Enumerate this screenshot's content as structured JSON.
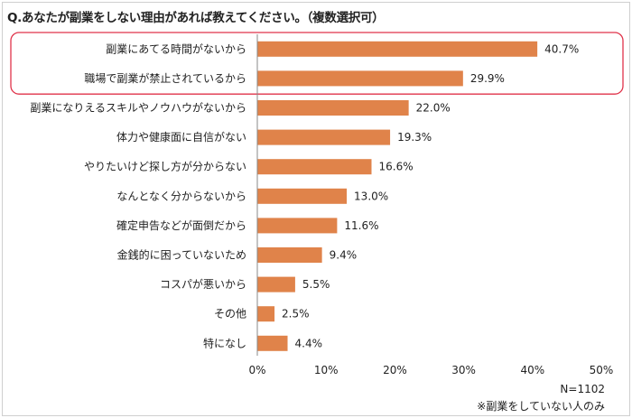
{
  "question_title": "Q.あなたが副業をしない理由があれば教えてください。（複数選択可）",
  "sample_size": "N=1102",
  "footnote": "※副業をしていない人のみ",
  "colors": {
    "bar": "#E0834A",
    "highlight_box": "#E0334A",
    "axis": "#888888"
  },
  "chart_data": {
    "type": "bar",
    "orientation": "horizontal",
    "categories": [
      "副業にあてる時間がないから",
      "職場で副業が禁止されているから",
      "副業になりえるスキルやノウハウがないから",
      "体力や健康面に自信がない",
      "やりたいけど探し方が分からない",
      "なんとなく分からないから",
      "確定申告などが面倒だから",
      "金銭的に困っていないため",
      "コスパが悪いから",
      "その他",
      "特になし"
    ],
    "values": [
      40.7,
      29.9,
      22.0,
      19.3,
      16.6,
      13.0,
      11.6,
      9.4,
      5.5,
      2.5,
      4.4
    ],
    "value_labels": [
      "40.7%",
      "29.9%",
      "22.0%",
      "19.3%",
      "16.6%",
      "13.0%",
      "11.6%",
      "9.4%",
      "5.5%",
      "2.5%",
      "4.4%"
    ],
    "xlim": [
      0,
      50
    ],
    "xticks": [
      "0%",
      "10%",
      "20%",
      "30%",
      "40%",
      "50%"
    ],
    "highlighted_categories": [
      "副業にあてる時間がないから",
      "職場で副業が禁止されているから"
    ],
    "grid": false
  }
}
